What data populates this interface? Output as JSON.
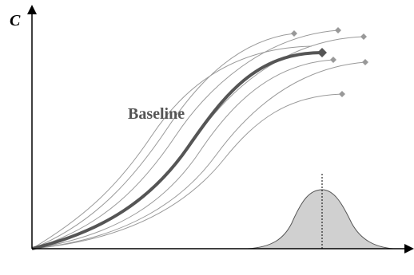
{
  "axis_label": "C",
  "baseline_label": "Baseline"
}
